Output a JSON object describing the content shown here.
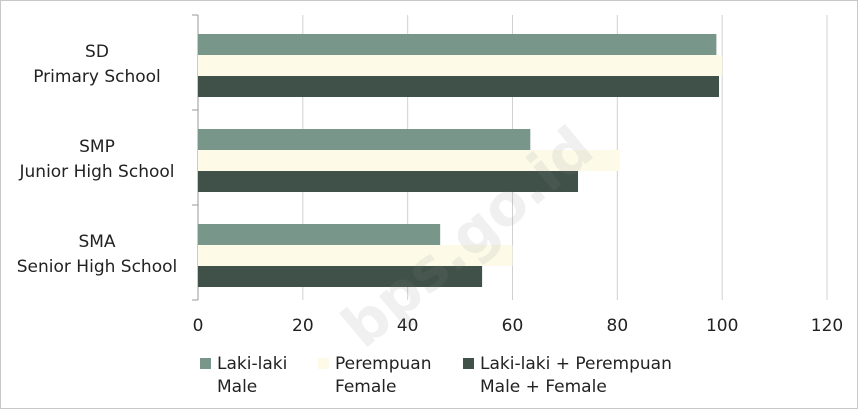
{
  "chart_data": {
    "type": "barh",
    "categories": [
      [
        "SD",
        "Primary School"
      ],
      [
        "SMP",
        "Junior High School"
      ],
      [
        "SMA",
        "Senior High School"
      ]
    ],
    "series": [
      {
        "name": [
          "Laki-laki",
          "Male"
        ],
        "color": "#78978a",
        "values": [
          98.9,
          63.4,
          46.2
        ]
      },
      {
        "name": [
          "Perempuan",
          "Female"
        ],
        "color": "#fdfbe8",
        "values": [
          100,
          80.5,
          60
        ]
      },
      {
        "name": [
          "Laki-laki + Perempuan",
          "Male + Female"
        ],
        "color": "#3f5149",
        "values": [
          99.4,
          72.5,
          54.2
        ]
      }
    ],
    "xlim": [
      0,
      120
    ],
    "xticks": [
      0,
      20,
      40,
      60,
      80,
      100,
      120
    ],
    "grid": true,
    "legend": "bottom",
    "watermark": "bps.go.id"
  }
}
